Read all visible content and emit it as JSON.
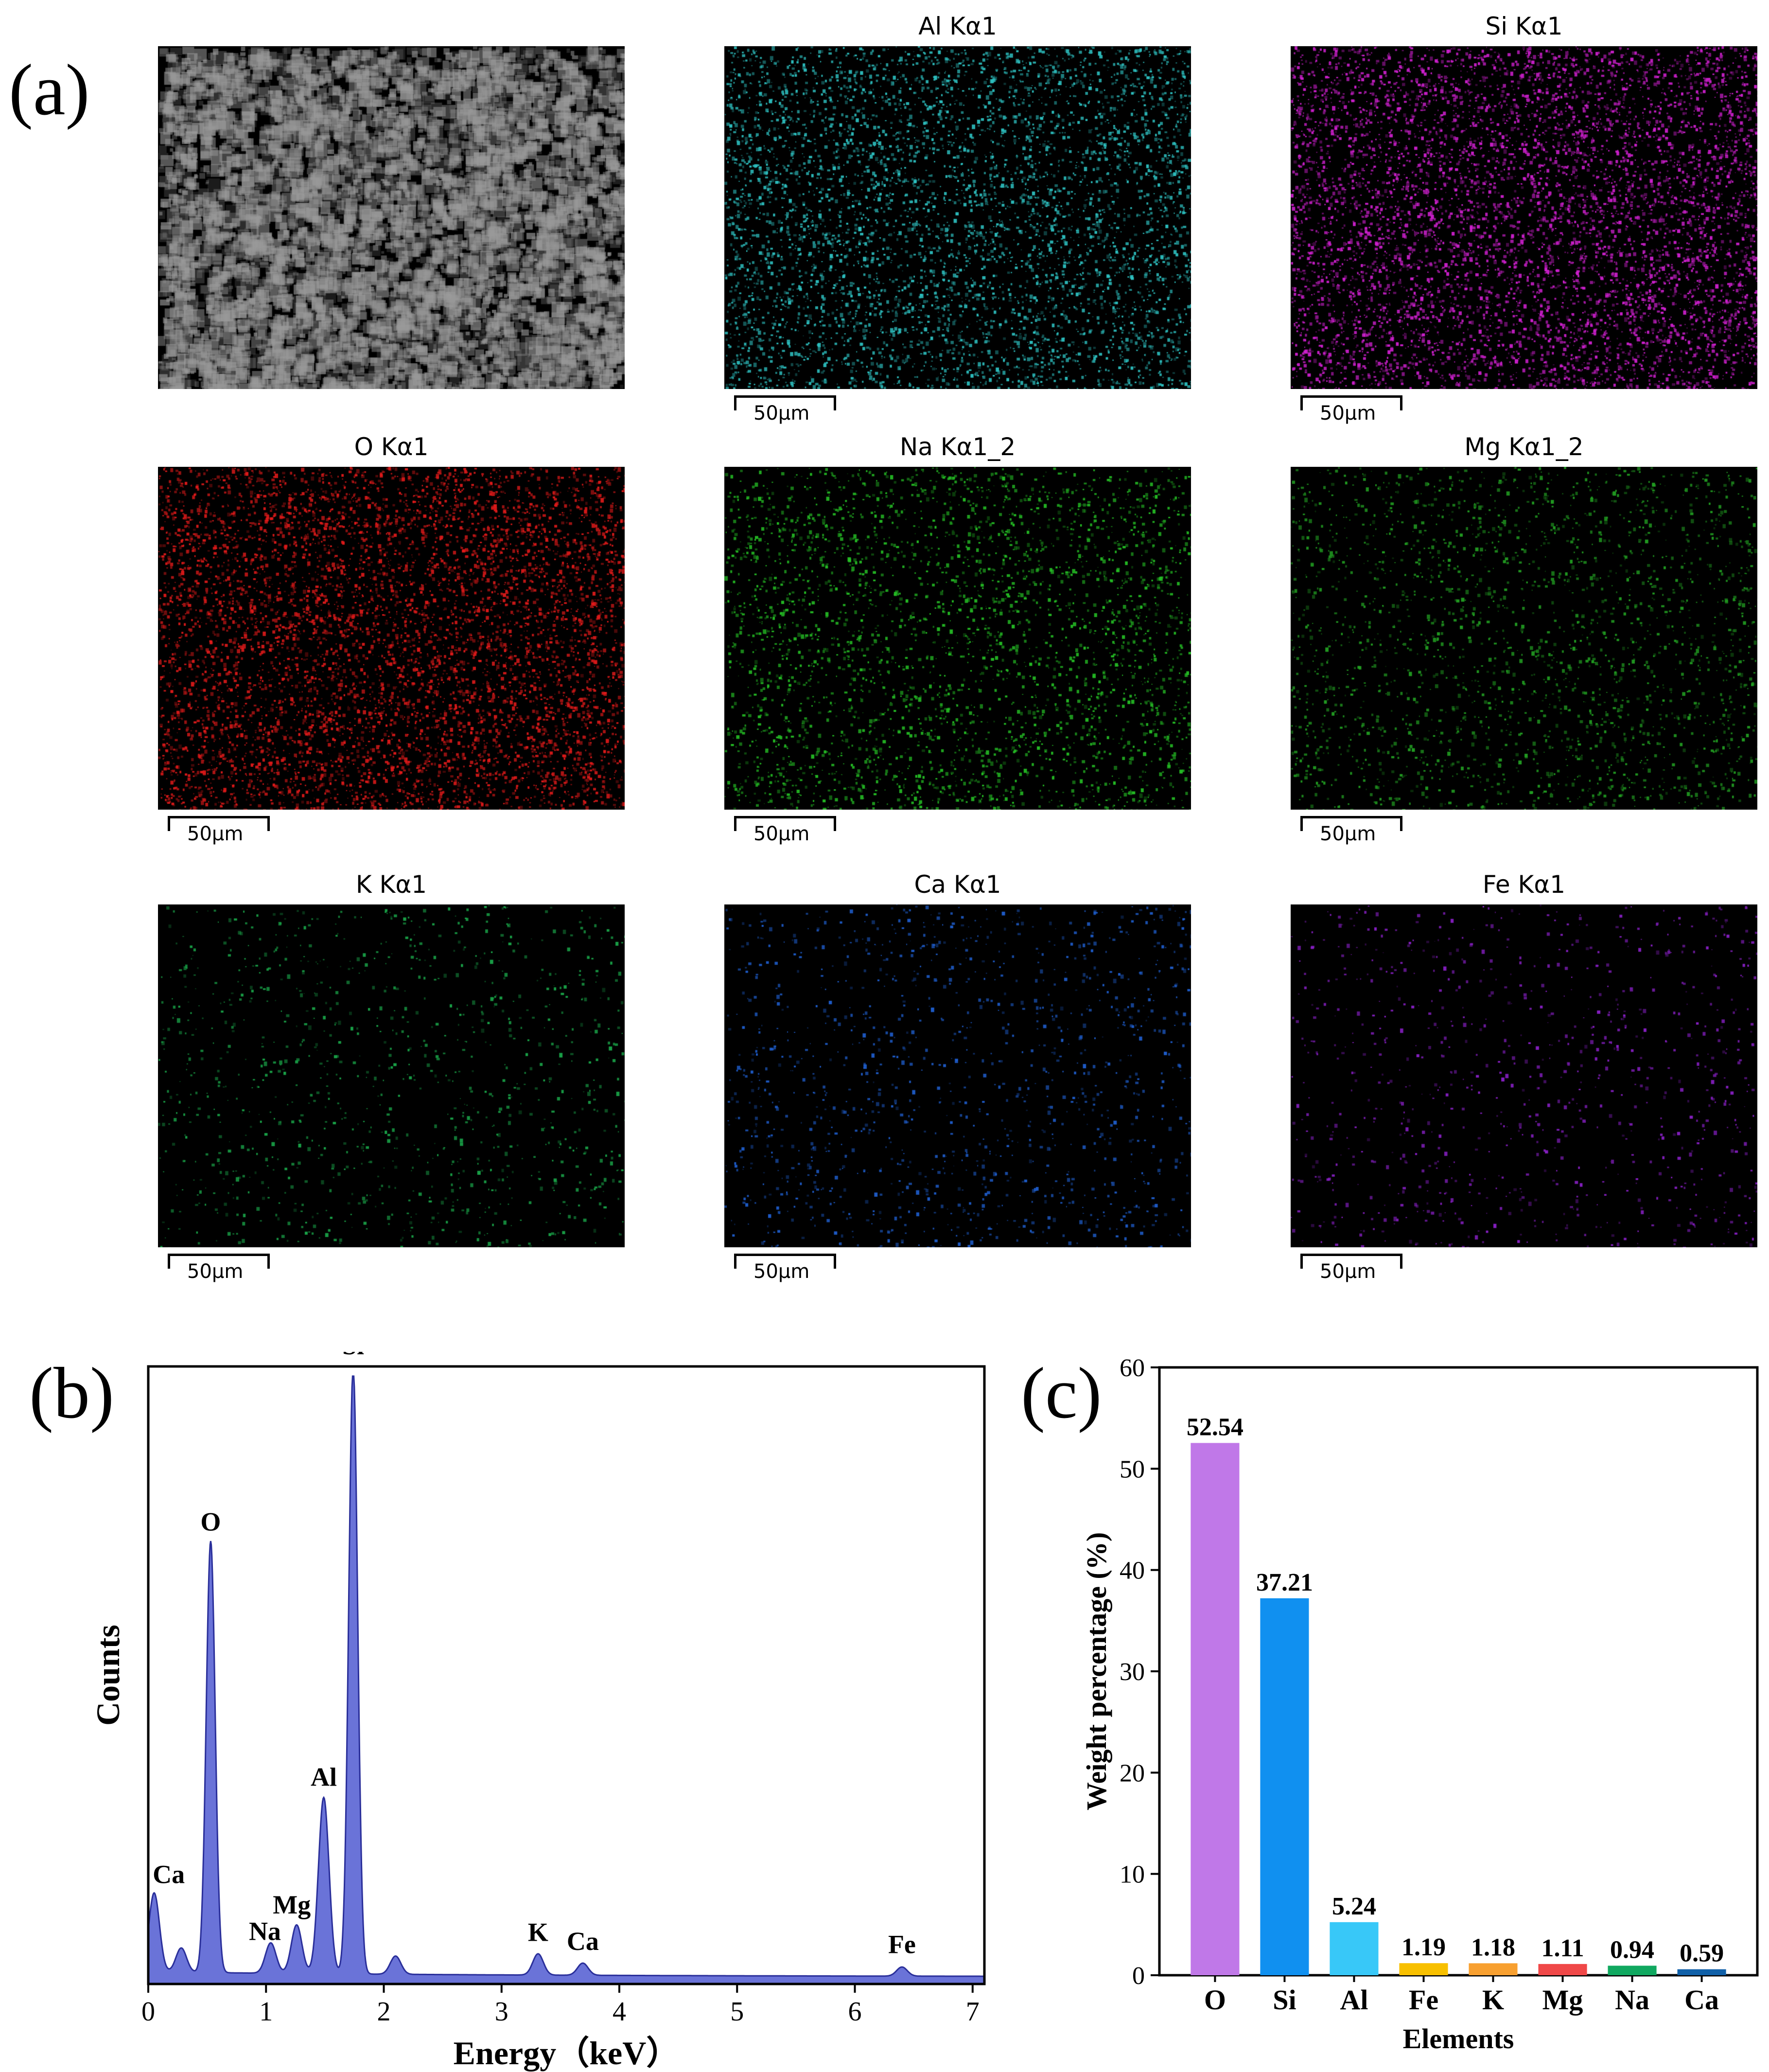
{
  "panels": {
    "a": "(a)",
    "b": "(b)",
    "c": "(c)"
  },
  "maps": [
    {
      "title": "",
      "color": "#9a9a9a",
      "scale": "",
      "kind": "sem",
      "density": 0.6
    },
    {
      "title": "Al Kα1",
      "color": "#2ec3c3",
      "scale": "50μm",
      "density": 0.55
    },
    {
      "title": "Si Kα1",
      "color": "#d020d0",
      "scale": "50μm",
      "density": 0.7
    },
    {
      "title": "O Kα1",
      "color": "#e01a1a",
      "scale": "50μm",
      "density": 0.7
    },
    {
      "title": "Na Kα1_2",
      "color": "#25c025",
      "scale": "50μm",
      "density": 0.35
    },
    {
      "title": "Mg Kα1_2",
      "color": "#22a022",
      "scale": "50μm",
      "density": 0.25
    },
    {
      "title": "K Kα1",
      "color": "#1aa84a",
      "scale": "50μm",
      "density": 0.12
    },
    {
      "title": "Ca Kα1",
      "color": "#1f5fd0",
      "scale": "50μm",
      "density": 0.14
    },
    {
      "title": "Fe Kα1",
      "color": "#8a20c8",
      "scale": "50μm",
      "density": 0.1
    }
  ],
  "chart_data": [
    {
      "type": "area",
      "xlabel": "Energy（keV）",
      "ylabel": "Counts",
      "xlim": [
        0,
        7.1
      ],
      "xticks": [
        0,
        1,
        2,
        3,
        4,
        5,
        6,
        7
      ],
      "fill_color": "#6a73d8",
      "peaks": [
        {
          "label": "Ca",
          "x": 0.05,
          "y": 0.13
        },
        {
          "label": "",
          "x": 0.28,
          "y": 0.04
        },
        {
          "label": "O",
          "x": 0.53,
          "y": 0.71
        },
        {
          "label": "Na",
          "x": 1.04,
          "y": 0.05
        },
        {
          "label": "Mg",
          "x": 1.26,
          "y": 0.08
        },
        {
          "label": "Al",
          "x": 1.49,
          "y": 0.29
        },
        {
          "label": "Si",
          "x": 1.74,
          "y": 1.0
        },
        {
          "label": "",
          "x": 2.1,
          "y": 0.03
        },
        {
          "label": "K",
          "x": 3.31,
          "y": 0.035
        },
        {
          "label": "Ca",
          "x": 3.69,
          "y": 0.02
        },
        {
          "label": "Fe",
          "x": 6.4,
          "y": 0.015
        }
      ]
    },
    {
      "type": "bar",
      "xlabel": "Elements",
      "ylabel": "Weight percentage (%)",
      "ylim": [
        0,
        60
      ],
      "yticks": [
        0,
        10,
        20,
        30,
        40,
        50,
        60
      ],
      "categories": [
        "O",
        "Si",
        "Al",
        "Fe",
        "K",
        "Mg",
        "Na",
        "Ca"
      ],
      "values": [
        52.54,
        37.21,
        5.24,
        1.19,
        1.18,
        1.11,
        0.94,
        0.59
      ],
      "value_labels": [
        "52.54",
        "37.21",
        "5.24",
        "1.19",
        "1.18",
        "1.11",
        "0.94",
        "0.59"
      ],
      "colors": [
        "#c078e8",
        "#1090f0",
        "#38c8f8",
        "#f8c000",
        "#f8a030",
        "#f04848",
        "#10a860",
        "#1060a8"
      ]
    }
  ]
}
